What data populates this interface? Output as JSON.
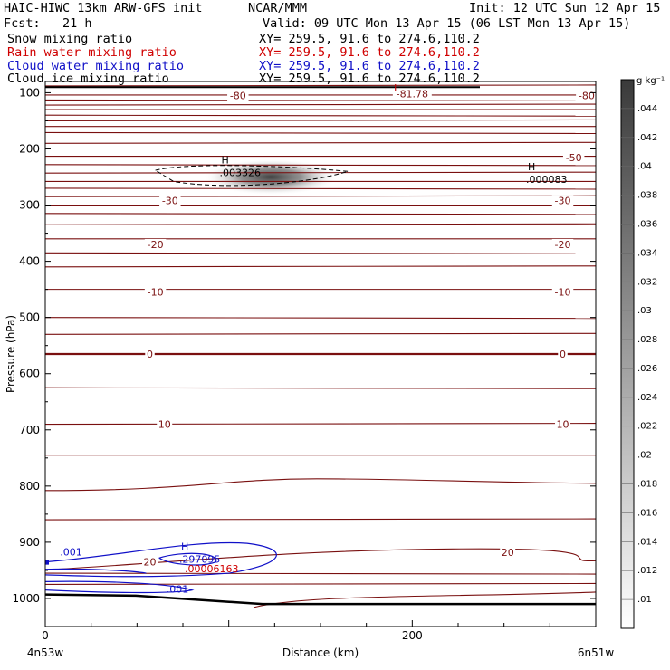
{
  "header": {
    "line1_left": "HAIC-HIWC 13km ARW-GFS init",
    "line1_mid": "NCAR/MMM",
    "line1_right": "Init: 12 UTC Sun 12 Apr 15",
    "line2_left": "Fcst:   21 h",
    "line2_right": "Valid: 09 UTC Mon 13 Apr 15 (06 LST Mon 13 Apr 15)",
    "fields": [
      {
        "name": "Snow mixing ratio",
        "xy": "XY= 259.5, 91.6 to 274.6,110.2",
        "color": "#000000"
      },
      {
        "name": "Rain water mixing ratio",
        "xy": "XY= 259.5, 91.6 to 274.6,110.2",
        "color": "#d00000"
      },
      {
        "name": "Cloud water mixing ratio",
        "xy": "XY= 259.5, 91.6 to 274.6,110.2",
        "color": "#1010c8"
      },
      {
        "name": "Cloud ice mixing ratio",
        "xy": "XY= 259.5, 91.6 to 274.6,110.2",
        "color": "#000000"
      }
    ]
  },
  "chart_data": {
    "type": "cross-section",
    "xlabel": "Distance (km)",
    "ylabel": "Pressure (hPa)",
    "xlim": [
      0,
      300
    ],
    "ylim": [
      1050,
      80
    ],
    "x_ticks": [
      0,
      200
    ],
    "y_ticks": [
      100,
      200,
      300,
      400,
      500,
      600,
      700,
      800,
      900,
      1000
    ],
    "x_endpoints": [
      "4n53w",
      "6n51w"
    ],
    "colorbar": {
      "units": "g kg⁻¹",
      "ticks": [
        ".01",
        ".012",
        ".014",
        ".016",
        ".018",
        ".02",
        ".022",
        ".024",
        ".026",
        ".028",
        ".03",
        ".032",
        ".034",
        ".036",
        ".038",
        ".04",
        ".042",
        ".044"
      ]
    },
    "temperature_contours": {
      "color": "#7a1010",
      "labels": [
        {
          "text": "-80",
          "x": 105,
          "p": 105
        },
        {
          "text": "-81.78",
          "x": 200,
          "p": 102
        },
        {
          "text": "-80",
          "x": 295,
          "p": 105
        },
        {
          "text": "-50",
          "x": 288,
          "p": 215
        },
        {
          "text": "-30",
          "x": 68,
          "p": 292
        },
        {
          "text": "-30",
          "x": 282,
          "p": 292
        },
        {
          "text": "-20",
          "x": 60,
          "p": 370
        },
        {
          "text": "-20",
          "x": 282,
          "p": 370
        },
        {
          "text": "-10",
          "x": 60,
          "p": 455
        },
        {
          "text": "-10",
          "x": 282,
          "p": 455
        },
        {
          "text": "0",
          "x": 57,
          "p": 565
        },
        {
          "text": "0",
          "x": 282,
          "p": 565
        },
        {
          "text": "10",
          "x": 65,
          "p": 690
        },
        {
          "text": "10",
          "x": 282,
          "p": 690
        },
        {
          "text": "20",
          "x": 57,
          "p": 935
        },
        {
          "text": "20",
          "x": 252,
          "p": 918
        }
      ],
      "extremum": {
        "text": "L",
        "x": 190,
        "p": 90
      }
    },
    "snow_max": {
      "text": ".003326",
      "x": 95,
      "p": 245,
      "mark": "H"
    },
    "ice_max": {
      "text": ".000083",
      "x": 262,
      "p": 257,
      "mark": "H"
    },
    "cloud_water": {
      "color": "#1010c8",
      "labels": [
        {
          "text": ".001",
          "x": 8,
          "p": 917
        },
        {
          "text": ".001",
          "x": 66,
          "p": 983
        }
      ],
      "max": {
        "text": ".297095",
        "x": 73,
        "p": 933,
        "mark": "H"
      }
    },
    "rain_max": {
      "text": ".00006163",
      "x": 76,
      "p": 950,
      "color": "#d00000"
    }
  }
}
